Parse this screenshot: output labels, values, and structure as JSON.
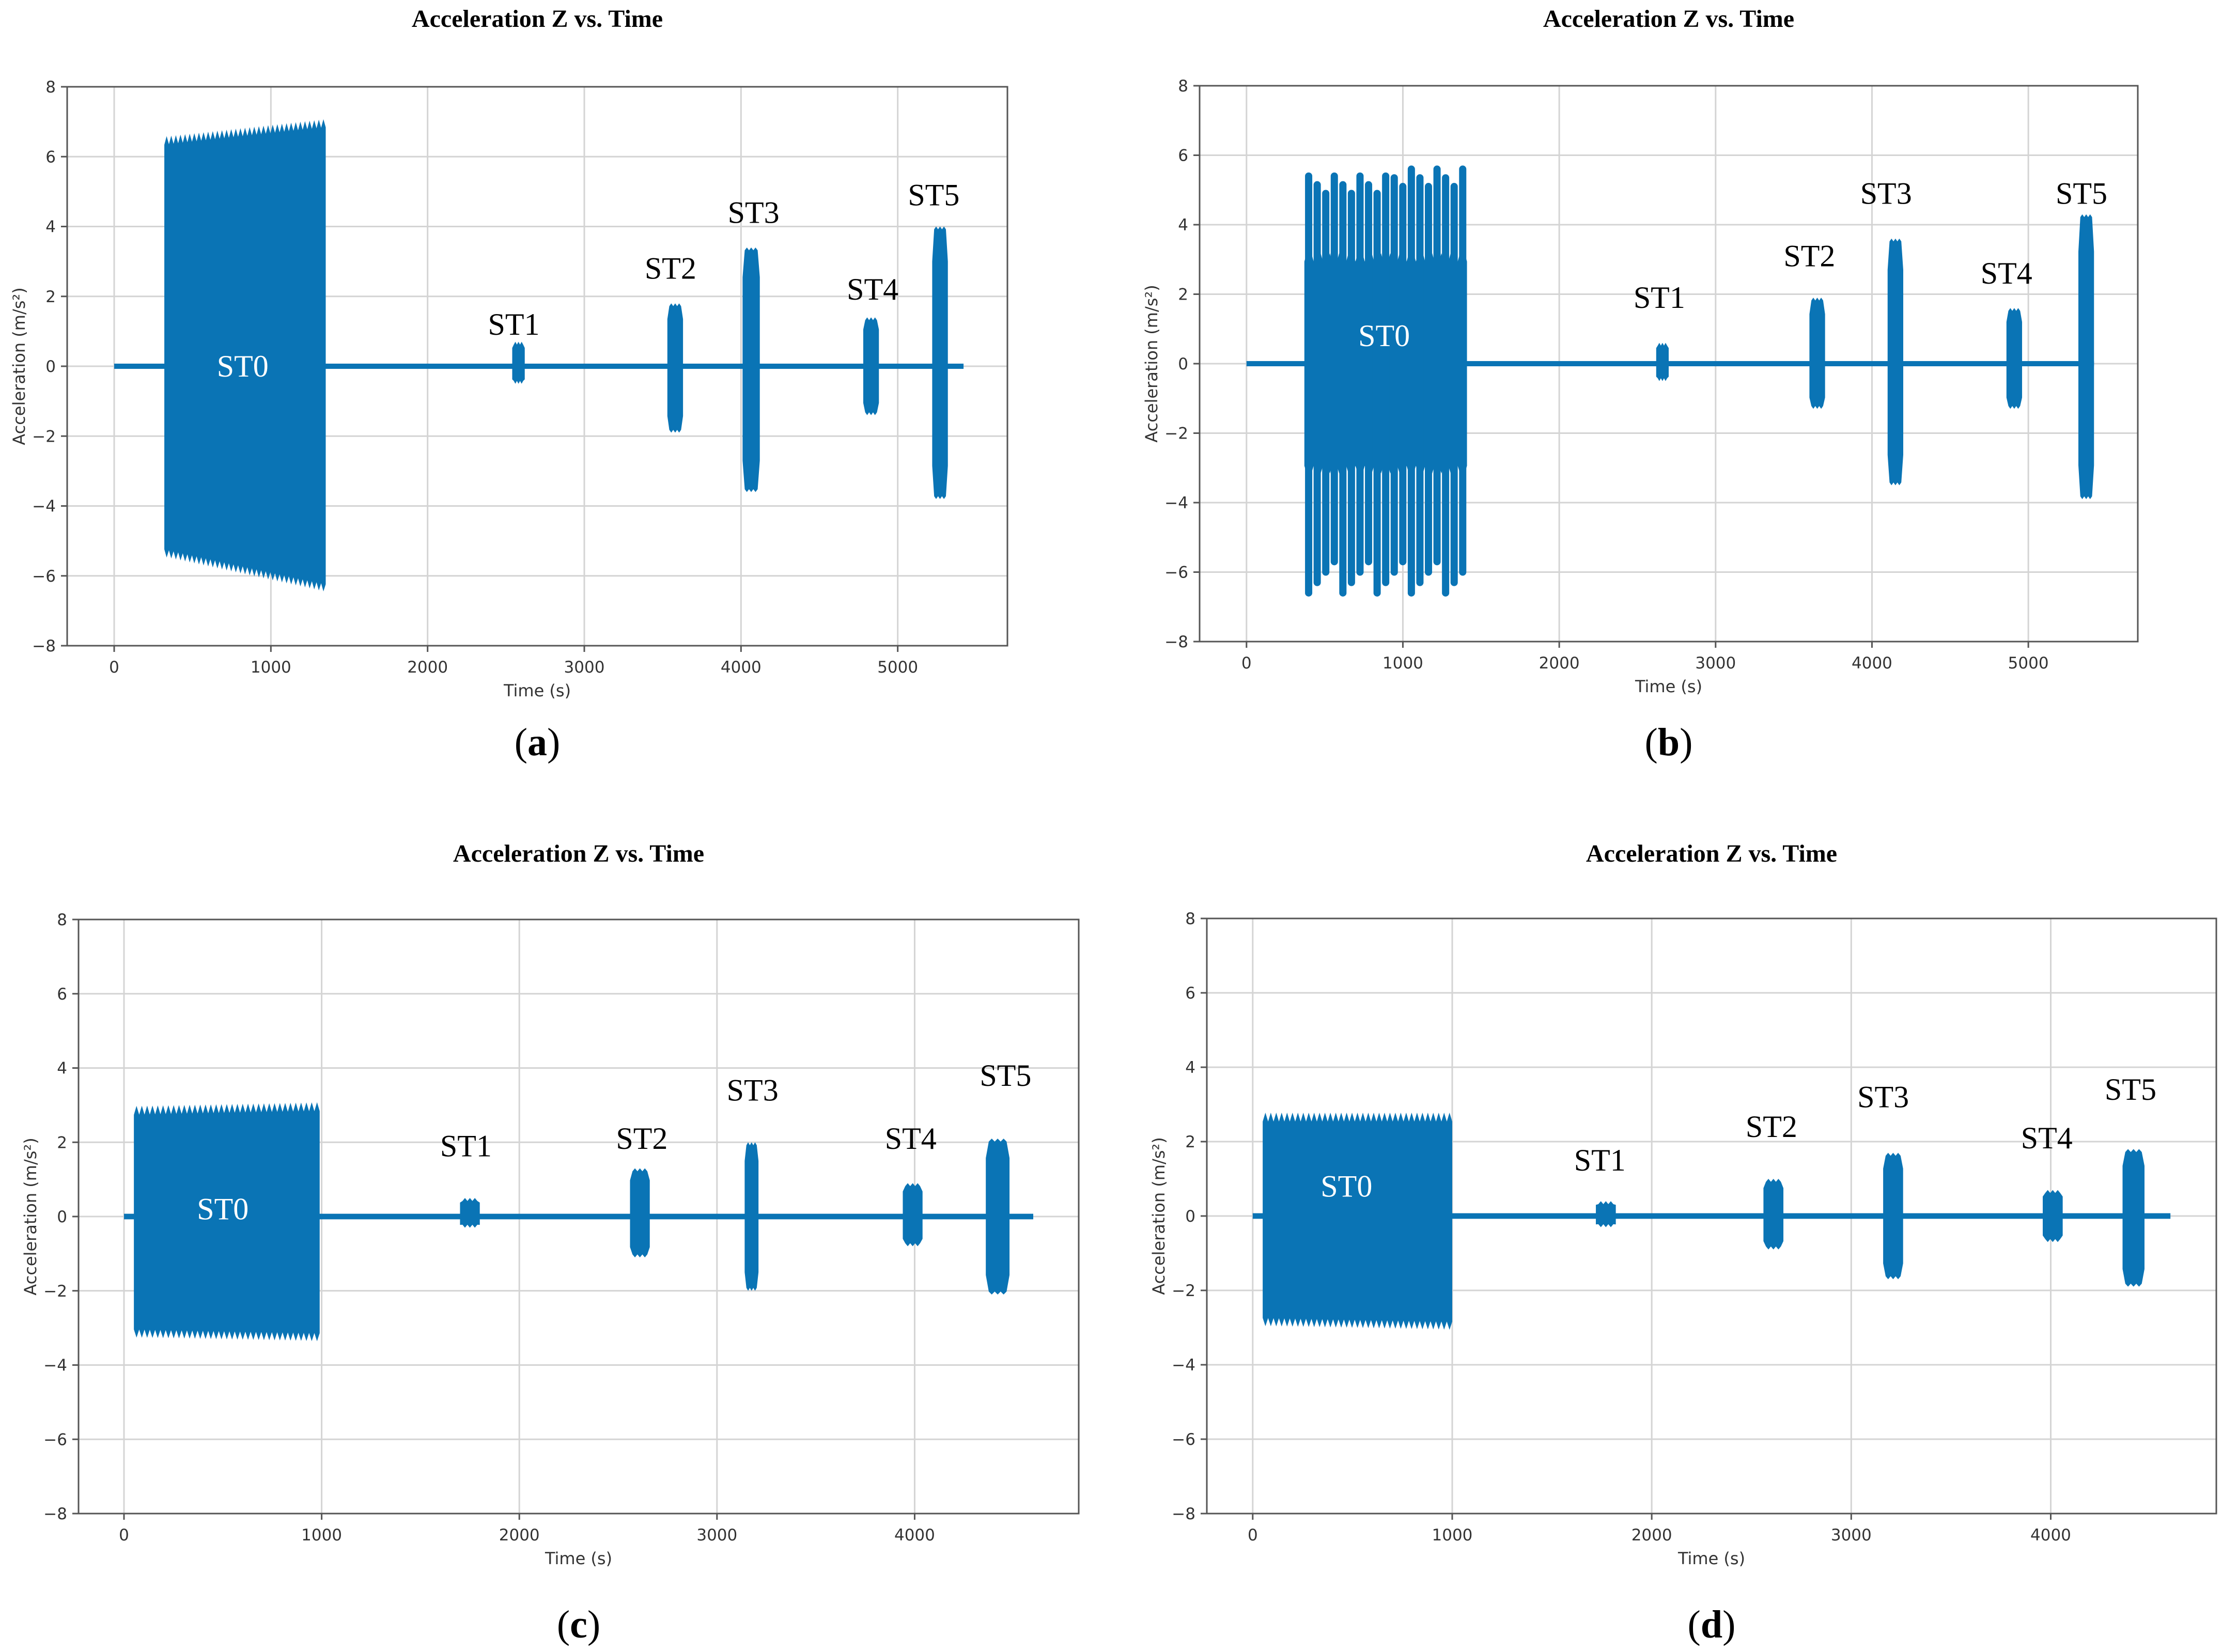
{
  "figure": {
    "colors": {
      "signal": "#0a74b5",
      "grid": "#d4d4d4",
      "frame": "#555555",
      "text": "#000000"
    },
    "panels_note": "four panels, each titled and labelled"
  },
  "chart_data": [
    {
      "panel": "(a)",
      "type": "line",
      "title": "Acceleration Z vs. Time",
      "xlabel": "Time (s)",
      "ylabel": "Acceleration (m/s²)",
      "xlim": [
        -300,
        5700
      ],
      "ylim": [
        -8,
        8
      ],
      "xticks": [
        0,
        1000,
        2000,
        3000,
        4000,
        5000
      ],
      "yticks": [
        -8,
        -6,
        -4,
        -2,
        0,
        2,
        4,
        6,
        8
      ],
      "grid": true,
      "baseline": {
        "x": [
          0,
          5420
        ],
        "y": 0,
        "thickness": 0.15
      },
      "segments": [
        {
          "name": "ST0",
          "x": [
            320,
            1350
          ],
          "max_start": 6.4,
          "max_end": 6.9,
          "min_start": -5.3,
          "min_end": -6.3
        },
        {
          "name": "ST1",
          "x": [
            2540,
            2620
          ],
          "max": 0.7,
          "min": -0.5
        },
        {
          "name": "ST2",
          "x": [
            3530,
            3630
          ],
          "max": 1.8,
          "min": -1.9
        },
        {
          "name": "ST3",
          "x": [
            4010,
            4120
          ],
          "max": 3.4,
          "min": -3.6
        },
        {
          "name": "ST4",
          "x": [
            4780,
            4880
          ],
          "max": 1.4,
          "min": -1.4
        },
        {
          "name": "ST5",
          "x": [
            5220,
            5320
          ],
          "max": 4.0,
          "min": -3.8
        }
      ],
      "annotations": [
        {
          "text": "ST0",
          "x": 820,
          "y": 0,
          "color": "#ffffff"
        },
        {
          "text": "ST1",
          "x": 2550,
          "y": 1.2,
          "color": "#000000"
        },
        {
          "text": "ST2",
          "x": 3550,
          "y": 2.8,
          "color": "#000000"
        },
        {
          "text": "ST3",
          "x": 4080,
          "y": 4.4,
          "color": "#000000"
        },
        {
          "text": "ST4",
          "x": 4840,
          "y": 2.2,
          "color": "#000000"
        },
        {
          "text": "ST5",
          "x": 5230,
          "y": 4.9,
          "color": "#000000"
        }
      ]
    },
    {
      "panel": "(b)",
      "type": "line",
      "title": "Acceleration Z vs. Time",
      "xlabel": "Time (s)",
      "ylabel": "Acceleration (m/s²)",
      "xlim": [
        -300,
        5700
      ],
      "ylim": [
        -8,
        8
      ],
      "xticks": [
        0,
        1000,
        2000,
        3000,
        4000,
        5000
      ],
      "yticks": [
        -8,
        -6,
        -4,
        -2,
        0,
        2,
        4,
        6,
        8
      ],
      "grid": true,
      "baseline": {
        "x": [
          0,
          5420
        ],
        "y": 0,
        "thickness": 0.15
      },
      "segments": [
        {
          "name": "ST0",
          "x": [
            370,
            1410
          ],
          "max_start": 3.0,
          "max_end": 3.0,
          "min_start": -3.0,
          "min_end": -3.0,
          "spikes": 19,
          "spike_max": 5.4,
          "spike_min": -6.6
        },
        {
          "name": "ST1",
          "x": [
            2620,
            2700
          ],
          "max": 0.6,
          "min": -0.5
        },
        {
          "name": "ST2",
          "x": [
            3600,
            3700
          ],
          "max": 1.9,
          "min": -1.3
        },
        {
          "name": "ST3",
          "x": [
            4100,
            4200
          ],
          "max": 3.6,
          "min": -3.5
        },
        {
          "name": "ST4",
          "x": [
            4860,
            4960
          ],
          "max": 1.6,
          "min": -1.3
        },
        {
          "name": "ST5",
          "x": [
            5320,
            5420
          ],
          "max": 4.3,
          "min": -3.9
        }
      ],
      "annotations": [
        {
          "text": "ST0",
          "x": 880,
          "y": 0.8,
          "color": "#ffffff"
        },
        {
          "text": "ST1",
          "x": 2640,
          "y": 1.9,
          "color": "#000000"
        },
        {
          "text": "ST2",
          "x": 3600,
          "y": 3.1,
          "color": "#000000"
        },
        {
          "text": "ST3",
          "x": 4090,
          "y": 4.9,
          "color": "#000000"
        },
        {
          "text": "ST4",
          "x": 4860,
          "y": 2.6,
          "color": "#000000"
        },
        {
          "text": "ST5",
          "x": 5340,
          "y": 4.9,
          "color": "#000000"
        }
      ]
    },
    {
      "panel": "(c)",
      "type": "line",
      "title": "Acceleration Z vs. Time",
      "xlabel": "Time (s)",
      "ylabel": "Acceleration (m/s²)",
      "xlim": [
        -230,
        4830
      ],
      "ylim": [
        -8,
        8
      ],
      "xticks": [
        0,
        1000,
        2000,
        3000,
        4000
      ],
      "yticks": [
        -8,
        -6,
        -4,
        -2,
        0,
        2,
        4,
        6,
        8
      ],
      "grid": true,
      "baseline": {
        "x": [
          0,
          4600
        ],
        "y": 0,
        "thickness": 0.15
      },
      "segments": [
        {
          "name": "ST0",
          "x": [
            50,
            990
          ],
          "max_start": 2.8,
          "max_end": 2.9,
          "min_start": -3.1,
          "min_end": -3.2
        },
        {
          "name": "ST1",
          "x": [
            1700,
            1800
          ],
          "max": 0.5,
          "min": -0.3
        },
        {
          "name": "ST2",
          "x": [
            2560,
            2660
          ],
          "max": 1.3,
          "min": -1.1
        },
        {
          "name": "ST3",
          "x": [
            3140,
            3210
          ],
          "max": 2.0,
          "min": -2.0
        },
        {
          "name": "ST4",
          "x": [
            3940,
            4040
          ],
          "max": 0.9,
          "min": -0.8
        },
        {
          "name": "ST5",
          "x": [
            4360,
            4480
          ],
          "max": 2.1,
          "min": -2.1
        }
      ],
      "annotations": [
        {
          "text": "ST0",
          "x": 500,
          "y": 0.2,
          "color": "#ffffff"
        },
        {
          "text": "ST1",
          "x": 1730,
          "y": 1.9,
          "color": "#000000"
        },
        {
          "text": "ST2",
          "x": 2620,
          "y": 2.1,
          "color": "#000000"
        },
        {
          "text": "ST3",
          "x": 3180,
          "y": 3.4,
          "color": "#000000"
        },
        {
          "text": "ST4",
          "x": 3980,
          "y": 2.1,
          "color": "#000000"
        },
        {
          "text": "ST5",
          "x": 4460,
          "y": 3.8,
          "color": "#000000"
        }
      ]
    },
    {
      "panel": "(d)",
      "type": "line",
      "title": "Acceleration Z vs. Time",
      "xlabel": "Time (s)",
      "ylabel": "Acceleration (m/s²)",
      "xlim": [
        -230,
        4830
      ],
      "ylim": [
        -8,
        8
      ],
      "xticks": [
        0,
        1000,
        2000,
        3000,
        4000
      ],
      "yticks": [
        -8,
        -6,
        -4,
        -2,
        0,
        2,
        4,
        6,
        8
      ],
      "grid": true,
      "baseline": {
        "x": [
          0,
          4600
        ],
        "y": 0,
        "thickness": 0.15
      },
      "segments": [
        {
          "name": "ST0",
          "x": [
            50,
            1000
          ],
          "max_start": 2.6,
          "max_end": 2.6,
          "min_start": -2.8,
          "min_end": -2.9
        },
        {
          "name": "ST1",
          "x": [
            1720,
            1820
          ],
          "max": 0.4,
          "min": -0.3
        },
        {
          "name": "ST2",
          "x": [
            2560,
            2660
          ],
          "max": 1.0,
          "min": -0.9
        },
        {
          "name": "ST3",
          "x": [
            3160,
            3260
          ],
          "max": 1.7,
          "min": -1.7
        },
        {
          "name": "ST4",
          "x": [
            3960,
            4060
          ],
          "max": 0.7,
          "min": -0.7
        },
        {
          "name": "ST5",
          "x": [
            4360,
            4470
          ],
          "max": 1.8,
          "min": -1.9
        }
      ],
      "annotations": [
        {
          "text": "ST0",
          "x": 470,
          "y": 0.8,
          "color": "#ffffff"
        },
        {
          "text": "ST1",
          "x": 1740,
          "y": 1.5,
          "color": "#000000"
        },
        {
          "text": "ST2",
          "x": 2600,
          "y": 2.4,
          "color": "#000000"
        },
        {
          "text": "ST3",
          "x": 3160,
          "y": 3.2,
          "color": "#000000"
        },
        {
          "text": "ST4",
          "x": 3980,
          "y": 2.1,
          "color": "#000000"
        },
        {
          "text": "ST5",
          "x": 4400,
          "y": 3.4,
          "color": "#000000"
        }
      ]
    }
  ]
}
